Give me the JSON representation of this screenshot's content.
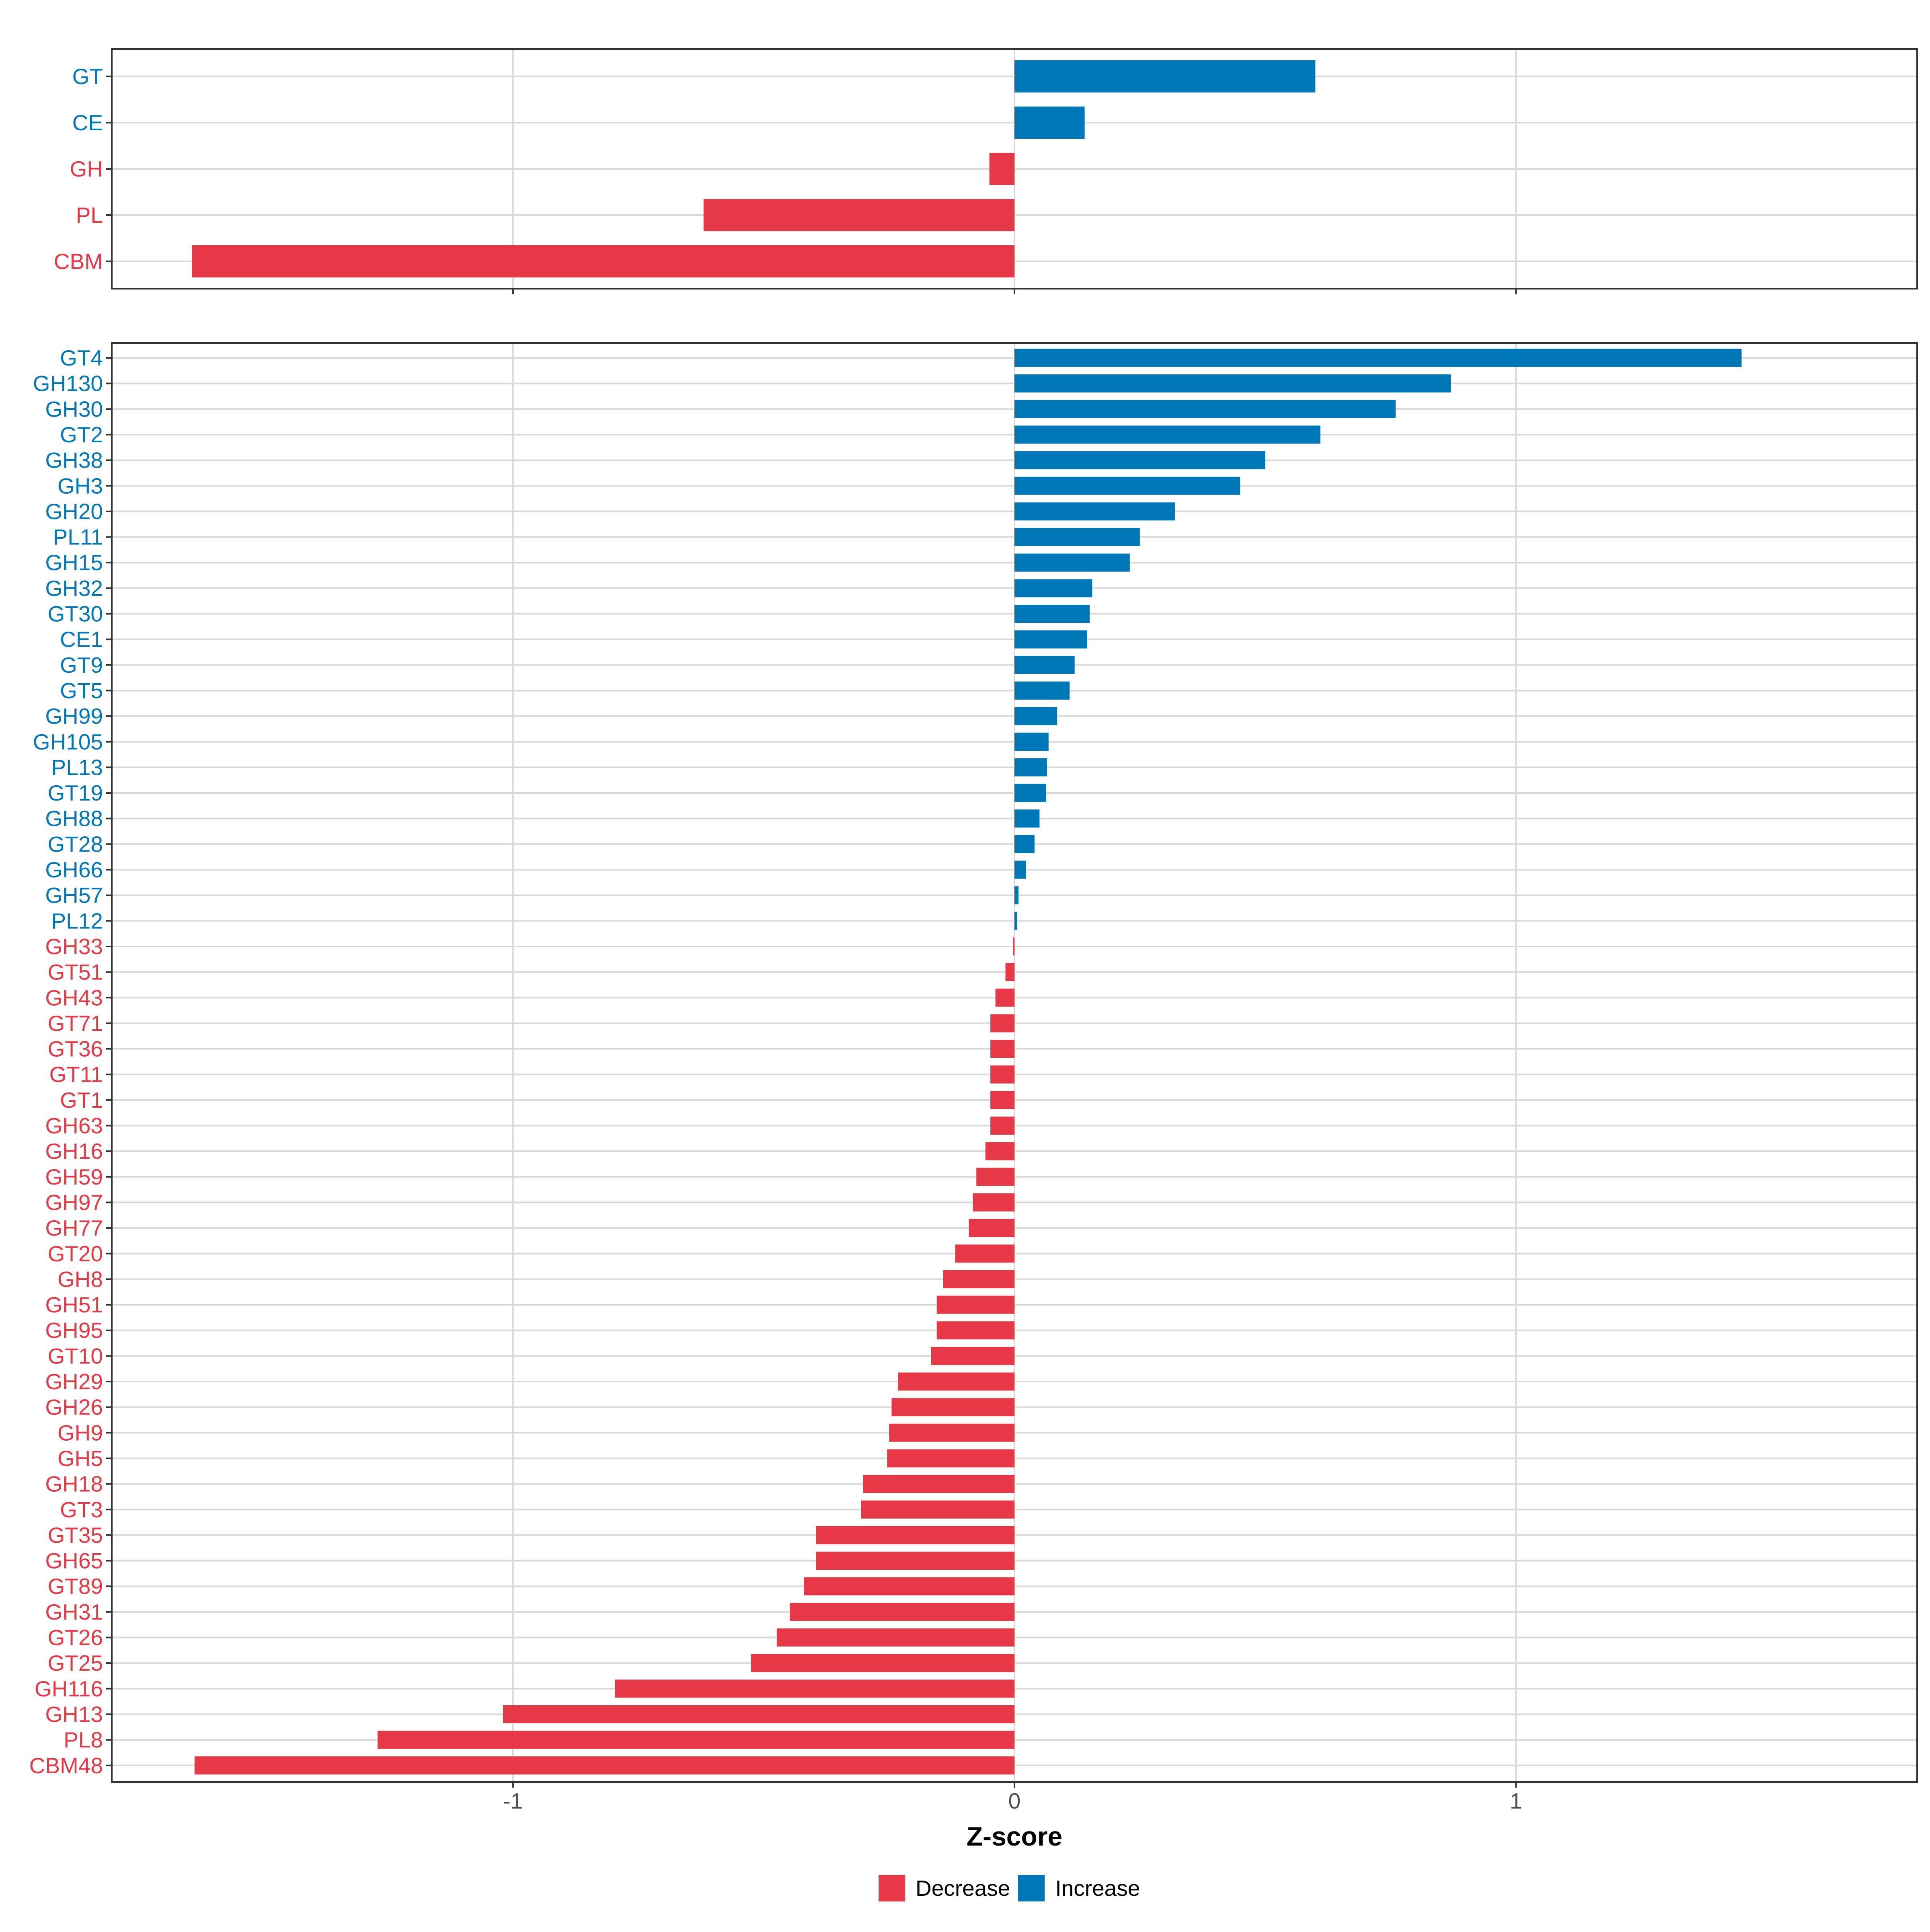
{
  "colors": {
    "decrease": "#E63946",
    "increase": "#0077B6",
    "grid": "#D9D9D9",
    "axis_text": "#4D4D4D"
  },
  "legend": {
    "decrease_label": "Decrease",
    "increase_label": "Increase"
  },
  "chart_data": [
    {
      "type": "bar",
      "orientation": "horizontal",
      "panel": "top",
      "categories": [
        "GT",
        "CE",
        "GH",
        "PL",
        "CBM"
      ],
      "values": [
        0.6,
        0.14,
        -0.05,
        -0.62,
        -1.64
      ],
      "xlim": [
        -1.8,
        1.8
      ],
      "xticks": [
        -1,
        0,
        1
      ],
      "grid": true
    },
    {
      "type": "bar",
      "orientation": "horizontal",
      "panel": "bottom",
      "categories": [
        "GT4",
        "GH130",
        "GH30",
        "GT2",
        "GH38",
        "GH3",
        "GH20",
        "PL11",
        "GH15",
        "GH32",
        "GT30",
        "CE1",
        "GT9",
        "GT5",
        "GH99",
        "GH105",
        "PL13",
        "GT19",
        "GH88",
        "GT28",
        "GH66",
        "GH57",
        "PL12",
        "GH33",
        "GT51",
        "GH43",
        "GT71",
        "GT36",
        "GT11",
        "GT1",
        "GH63",
        "GH16",
        "GH59",
        "GH97",
        "GH77",
        "GT20",
        "GH8",
        "GH51",
        "GH95",
        "GT10",
        "GH29",
        "GH26",
        "GH9",
        "GH5",
        "GH18",
        "GT3",
        "GT35",
        "GH65",
        "GT89",
        "GH31",
        "GT26",
        "GT25",
        "GH116",
        "GH13",
        "PL8",
        "CBM48"
      ],
      "values": [
        1.45,
        0.87,
        0.76,
        0.61,
        0.5,
        0.45,
        0.32,
        0.25,
        0.23,
        0.155,
        0.15,
        0.145,
        0.12,
        0.11,
        0.085,
        0.068,
        0.065,
        0.063,
        0.05,
        0.04,
        0.023,
        0.008,
        0.005,
        -0.003,
        -0.018,
        -0.038,
        -0.048,
        -0.048,
        -0.048,
        -0.048,
        -0.048,
        -0.058,
        -0.076,
        -0.083,
        -0.091,
        -0.118,
        -0.142,
        -0.155,
        -0.155,
        -0.166,
        -0.232,
        -0.245,
        -0.25,
        -0.254,
        -0.302,
        -0.306,
        -0.396,
        -0.396,
        -0.42,
        -0.448,
        -0.474,
        -0.526,
        -0.797,
        -1.02,
        -1.27,
        -1.635
      ],
      "xlim": [
        -1.8,
        1.8
      ],
      "xticks": [
        -1,
        0,
        1
      ],
      "xtick_labels": [
        "-1",
        "0",
        "1"
      ],
      "xlabel": "Z-score",
      "grid": true
    }
  ]
}
